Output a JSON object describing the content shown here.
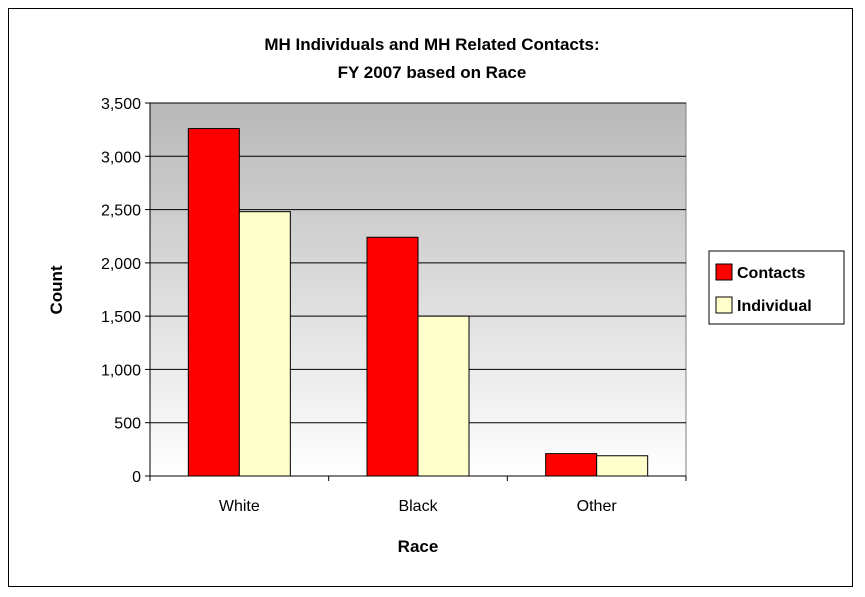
{
  "chart_data": {
    "type": "bar",
    "title_lines": [
      "MH Individuals and MH Related Contacts:",
      "FY 2007 based on Race"
    ],
    "xlabel": "Race",
    "ylabel": "Count",
    "categories": [
      "White",
      "Black",
      "Other"
    ],
    "series": [
      {
        "name": "Contacts",
        "values": [
          3260,
          2240,
          210
        ],
        "color": "#ff0000"
      },
      {
        "name": "Individual",
        "values": [
          2480,
          1500,
          190
        ],
        "color": "#ffffcc"
      }
    ],
    "ylim": [
      0,
      3500
    ],
    "yticks": [
      0,
      500,
      1000,
      1500,
      2000,
      2500,
      3000,
      3500
    ],
    "ytick_labels": [
      "0",
      "500",
      "1,000",
      "1,500",
      "2,000",
      "2,500",
      "3,000",
      "3,500"
    ],
    "grid": true,
    "legend_position": "right",
    "plot_background": "gradient gray to white"
  }
}
